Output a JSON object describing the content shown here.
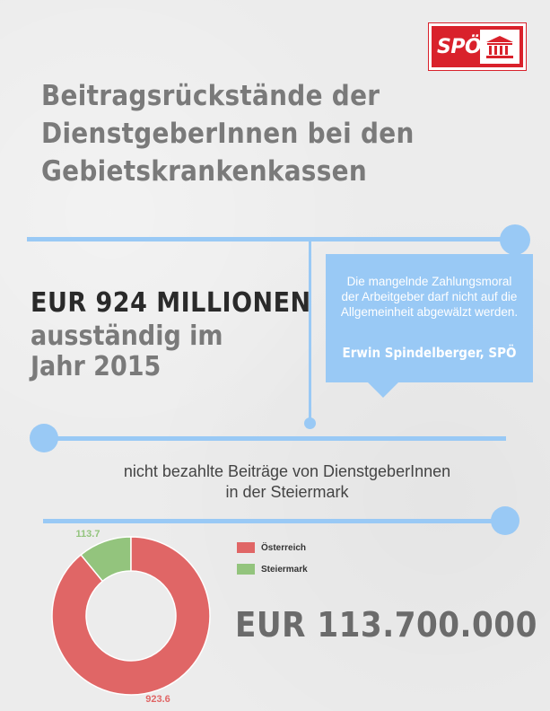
{
  "logo": {
    "text": "SPÖ"
  },
  "title": {
    "line1": "Beitragsrückstände der",
    "line2": "DienstgeberInnen bei den",
    "line3": "Gebietskrankenkassen"
  },
  "headline": {
    "main": "EUR 924 MILLIONEN",
    "sub": "ausständig im Jahr 2015"
  },
  "quote": {
    "text": "Die mangelnde Zahlungsmoral der Arbeitgeber darf nicht auf die Allgemeinheit abgewälzt werden.",
    "author": "Erwin Spindelberger, SPÖ"
  },
  "subtitle": {
    "line1": "nicht bezahlte Beiträge von DienstgeberInnen",
    "line2": "in der Steiermark"
  },
  "big_amount": "EUR 113.700.000",
  "colors": {
    "accent_blue": "#99c9f5",
    "osterreich": "#e06666",
    "steiermark": "#93c47d",
    "logo_red": "#d9212b"
  },
  "chart_data": {
    "type": "pie",
    "donut": true,
    "slices": [
      {
        "name": "Österreich",
        "value": 923.6,
        "label": "923.6",
        "color": "#e06666"
      },
      {
        "name": "Steiermark",
        "value": 113.7,
        "label": "113.7",
        "color": "#93c47d"
      }
    ],
    "legend_position": "right"
  }
}
